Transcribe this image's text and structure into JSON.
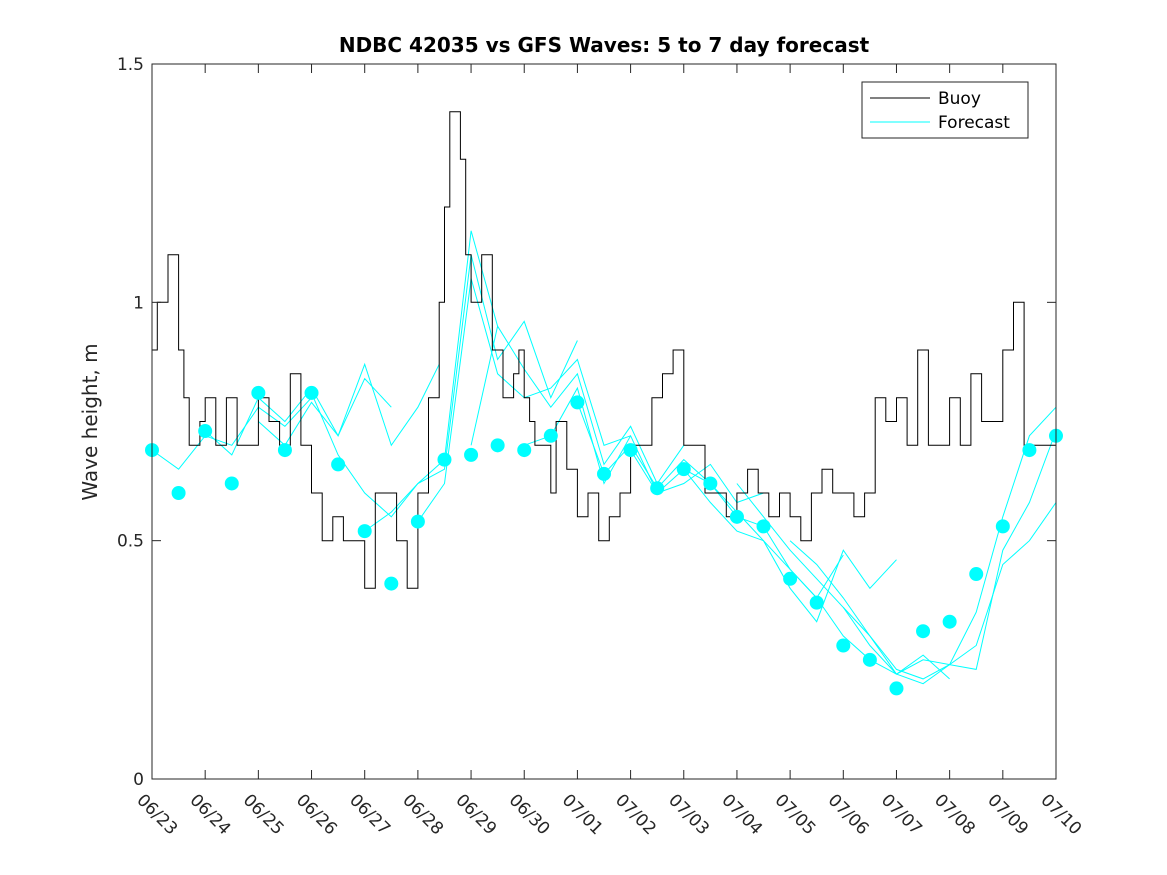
{
  "chart_data": {
    "type": "line",
    "title": "NDBC 42035 vs GFS Waves: 5 to 7 day forecast",
    "xlabel": "",
    "ylabel": "Wave height, m",
    "ylim": [
      0,
      1.5
    ],
    "xlim": [
      "06/23",
      "07/10"
    ],
    "x_ticks": [
      "06/23",
      "06/24",
      "06/25",
      "06/26",
      "06/27",
      "06/28",
      "06/29",
      "06/30",
      "07/01",
      "07/02",
      "07/03",
      "07/04",
      "07/05",
      "07/06",
      "07/07",
      "07/08",
      "07/09",
      "07/10"
    ],
    "y_ticks": [
      "0",
      "0.5",
      "1",
      "1.5"
    ],
    "grid": false,
    "legend_position": "top-right",
    "colors": {
      "buoy": "#000000",
      "forecast": "#00ffff",
      "axis": "#262626"
    },
    "series": [
      {
        "name": "Buoy",
        "x_days": [
          0,
          0.1,
          0.2,
          0.3,
          0.5,
          0.6,
          0.7,
          0.9,
          1.0,
          1.2,
          1.4,
          1.6,
          1.8,
          2.0,
          2.2,
          2.4,
          2.6,
          2.8,
          3.0,
          3.1,
          3.2,
          3.4,
          3.6,
          3.8,
          4.0,
          4.2,
          4.4,
          4.6,
          4.8,
          5.0,
          5.2,
          5.4,
          5.5,
          5.6,
          5.8,
          5.9,
          6.0,
          6.2,
          6.4,
          6.6,
          6.8,
          6.9,
          7.0,
          7.1,
          7.2,
          7.3,
          7.5,
          7.6,
          7.8,
          8.0,
          8.2,
          8.4,
          8.6,
          8.8,
          9.0,
          9.2,
          9.4,
          9.6,
          9.8,
          10.0,
          10.2,
          10.4,
          10.6,
          10.8,
          11.0,
          11.2,
          11.4,
          11.6,
          11.8,
          12.0,
          12.2,
          12.4,
          12.6,
          12.8,
          13.0,
          13.2,
          13.4,
          13.6,
          13.8,
          14.0,
          14.2,
          14.4,
          14.6,
          14.8,
          15.0,
          15.2,
          15.4,
          15.6,
          15.8,
          16.0,
          16.2,
          16.4,
          16.6,
          16.8,
          17.0
        ],
        "values": [
          0.9,
          1.0,
          1.0,
          1.1,
          0.9,
          0.8,
          0.7,
          0.75,
          0.8,
          0.7,
          0.8,
          0.7,
          0.7,
          0.8,
          0.75,
          0.7,
          0.85,
          0.7,
          0.6,
          0.6,
          0.5,
          0.55,
          0.5,
          0.5,
          0.4,
          0.6,
          0.6,
          0.5,
          0.4,
          0.6,
          0.8,
          1.0,
          1.2,
          1.4,
          1.3,
          1.1,
          1.0,
          1.1,
          0.9,
          0.8,
          0.85,
          0.9,
          0.8,
          0.75,
          0.7,
          0.7,
          0.6,
          0.75,
          0.65,
          0.55,
          0.6,
          0.5,
          0.55,
          0.6,
          0.7,
          0.7,
          0.8,
          0.85,
          0.9,
          0.7,
          0.7,
          0.6,
          0.6,
          0.55,
          0.6,
          0.65,
          0.6,
          0.55,
          0.6,
          0.55,
          0.5,
          0.6,
          0.65,
          0.6,
          0.6,
          0.55,
          0.6,
          0.8,
          0.75,
          0.8,
          0.7,
          0.9,
          0.7,
          0.7,
          0.8,
          0.7,
          0.85,
          0.75,
          0.75,
          0.9,
          1.0,
          0.7,
          0.7,
          0.7,
          0.7
        ]
      },
      {
        "name": "Forecast",
        "x_days": [
          0,
          0.5,
          1.0,
          1.5,
          2.0,
          2.5,
          3.0,
          3.5,
          4.0,
          4.5,
          5.0,
          5.5,
          6.0,
          6.5,
          7.0,
          7.5,
          8.0,
          8.5,
          9.0,
          9.5,
          10.0,
          10.5,
          11.0,
          11.5,
          12.0,
          12.5,
          13.0,
          13.5,
          14.0,
          14.5,
          15.0,
          15.5,
          16.0,
          16.5,
          17.0
        ],
        "values": [
          0.69,
          0.6,
          0.73,
          0.62,
          0.81,
          0.69,
          0.81,
          0.66,
          0.52,
          0.41,
          0.54,
          0.67,
          0.68,
          0.7,
          0.69,
          0.72,
          0.79,
          0.64,
          0.69,
          0.61,
          0.65,
          0.62,
          0.55,
          0.53,
          0.42,
          0.37,
          0.28,
          0.25,
          0.19,
          0.31,
          0.33,
          0.43,
          0.53,
          0.69,
          0.72
        ]
      }
    ],
    "forecast_runs": [
      {
        "x_days": [
          0.0,
          0.5,
          1.0,
          1.5,
          2.0,
          2.5,
          3.0
        ],
        "values": [
          0.69,
          0.65,
          0.72,
          0.7,
          0.78,
          0.74,
          0.8
        ]
      },
      {
        "x_days": [
          1.0,
          1.5,
          2.0,
          2.5,
          3.0,
          3.5,
          4.0,
          4.5
        ],
        "values": [
          0.73,
          0.68,
          0.8,
          0.75,
          0.82,
          0.72,
          0.84,
          0.78
        ]
      },
      {
        "x_days": [
          2.0,
          2.5,
          3.0,
          3.5,
          4.0,
          4.5,
          5.0,
          5.4
        ],
        "values": [
          0.75,
          0.7,
          0.79,
          0.72,
          0.87,
          0.7,
          0.78,
          0.87
        ]
      },
      {
        "x_days": [
          3.0,
          3.5,
          4.0,
          4.5,
          5.0,
          5.5,
          6.0,
          6.5
        ],
        "values": [
          0.81,
          0.68,
          0.6,
          0.55,
          0.62,
          0.67,
          1.15,
          0.95
        ]
      },
      {
        "x_days": [
          4.0,
          4.5,
          5.0,
          5.5,
          6.0,
          6.5,
          7.0,
          7.5,
          8.0
        ],
        "values": [
          0.52,
          0.56,
          0.62,
          0.65,
          1.1,
          0.88,
          0.96,
          0.8,
          0.92
        ]
      },
      {
        "x_days": [
          5.0,
          5.5,
          6.0,
          6.5,
          7.0,
          7.5,
          8.0,
          8.5,
          9.0
        ],
        "values": [
          0.54,
          0.62,
          1.05,
          0.85,
          0.8,
          0.82,
          0.88,
          0.7,
          0.72
        ]
      },
      {
        "x_days": [
          6.0,
          6.5,
          7.0,
          7.5,
          8.0,
          8.5,
          9.0,
          9.5,
          10.0
        ],
        "values": [
          0.7,
          0.95,
          0.86,
          0.78,
          0.85,
          0.66,
          0.74,
          0.62,
          0.7
        ]
      },
      {
        "x_days": [
          7.0,
          7.5,
          8.0,
          8.5,
          9.0,
          9.5,
          10.0,
          10.5,
          11.0,
          11.5
        ],
        "values": [
          0.7,
          0.72,
          0.82,
          0.62,
          0.72,
          0.6,
          0.62,
          0.66,
          0.58,
          0.6
        ]
      },
      {
        "x_days": [
          8.0,
          8.5,
          9.0,
          9.5,
          10.0,
          10.5,
          11.0,
          11.5,
          12.0,
          12.5,
          13.0
        ],
        "values": [
          0.79,
          0.64,
          0.7,
          0.61,
          0.67,
          0.62,
          0.56,
          0.5,
          0.44,
          0.38,
          0.47
        ]
      },
      {
        "x_days": [
          9.0,
          9.5,
          10.0,
          10.5,
          11.0,
          11.5,
          12.0,
          12.5,
          13.0,
          13.5,
          14.0
        ],
        "values": [
          0.69,
          0.6,
          0.65,
          0.58,
          0.52,
          0.5,
          0.4,
          0.33,
          0.48,
          0.4,
          0.46
        ]
      },
      {
        "x_days": [
          10.0,
          10.5,
          11.0,
          11.5,
          12.0,
          12.5,
          13.0,
          13.5,
          14.0,
          14.5,
          15.0
        ],
        "values": [
          0.65,
          0.62,
          0.55,
          0.53,
          0.44,
          0.38,
          0.3,
          0.25,
          0.22,
          0.26,
          0.21
        ]
      },
      {
        "x_days": [
          11.0,
          11.5,
          12.0,
          12.5,
          13.0,
          13.5,
          14.0,
          14.5,
          15.0,
          15.5,
          16.0,
          16.5,
          17.0
        ],
        "values": [
          0.62,
          0.55,
          0.48,
          0.42,
          0.36,
          0.28,
          0.22,
          0.25,
          0.24,
          0.35,
          0.55,
          0.72,
          0.78
        ]
      },
      {
        "x_days": [
          12.0,
          12.5,
          13.0,
          13.5,
          14.0,
          14.5,
          15.0,
          15.5,
          16.0,
          16.5,
          17.0
        ],
        "values": [
          0.5,
          0.45,
          0.38,
          0.3,
          0.22,
          0.2,
          0.24,
          0.23,
          0.48,
          0.58,
          0.73
        ]
      },
      {
        "x_days": [
          13.0,
          13.5,
          14.0,
          14.5,
          15.0,
          15.5,
          16.0,
          16.5,
          17.0
        ],
        "values": [
          0.36,
          0.3,
          0.23,
          0.21,
          0.24,
          0.28,
          0.45,
          0.5,
          0.58
        ]
      }
    ]
  }
}
